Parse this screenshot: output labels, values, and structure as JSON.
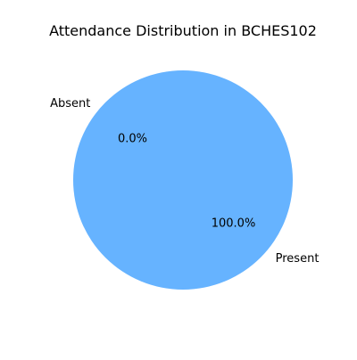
{
  "chart_data": {
    "type": "pie",
    "title": "Attendance Distribution in BCHES102",
    "slices": [
      {
        "label": "Present",
        "value": 100.0,
        "pct_label": "100.0%",
        "color": "#66b3ff"
      },
      {
        "label": "Absent",
        "value": 0.0,
        "pct_label": "0.0%",
        "color": "#ff9999"
      }
    ]
  }
}
